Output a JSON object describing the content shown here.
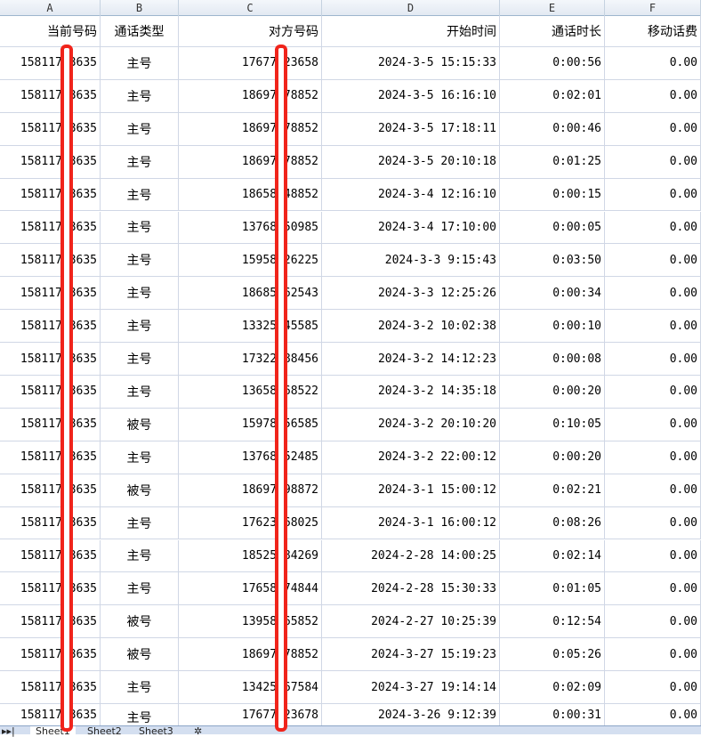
{
  "columns": [
    "A",
    "B",
    "C",
    "D",
    "E",
    "F"
  ],
  "headers": [
    "当前号码",
    "通话类型",
    "对方号码",
    "开始时间",
    "通话时长",
    "移动话费"
  ],
  "rows": [
    [
      "15811753635",
      "主号",
      "17677123658",
      "2024-3-5 15:15:33",
      "0:00:56",
      "0.00"
    ],
    [
      "15811753635",
      "主号",
      "18697378852",
      "2024-3-5 16:16:10",
      "0:02:01",
      "0.00"
    ],
    [
      "15811753635",
      "主号",
      "18697378852",
      "2024-3-5 17:18:11",
      "0:00:46",
      "0.00"
    ],
    [
      "15811753635",
      "主号",
      "18697378852",
      "2024-3-5 20:10:18",
      "0:01:25",
      "0.00"
    ],
    [
      "15811753635",
      "主号",
      "18658548852",
      "2024-3-4 12:16:10",
      "0:00:15",
      "0.00"
    ],
    [
      "15811753635",
      "主号",
      "13768250985",
      "2024-3-4 17:10:00",
      "0:00:05",
      "0.00"
    ],
    [
      "15811753635",
      "主号",
      "15958426225",
      "2024-3-3 9:15:43",
      "0:03:50",
      "0.00"
    ],
    [
      "15811753635",
      "主号",
      "18685562543",
      "2024-3-3 12:25:26",
      "0:00:34",
      "0.00"
    ],
    [
      "15811753635",
      "主号",
      "13325545585",
      "2024-3-2 10:02:38",
      "0:00:10",
      "0.00"
    ],
    [
      "15811753635",
      "主号",
      "17322388456",
      "2024-3-2 14:12:23",
      "0:00:08",
      "0.00"
    ],
    [
      "15811753635",
      "主号",
      "13658568522",
      "2024-3-2 14:35:18",
      "0:00:20",
      "0.00"
    ],
    [
      "15811753635",
      "被号",
      "15978156585",
      "2024-3-2 20:10:20",
      "0:10:05",
      "0.00"
    ],
    [
      "15811753635",
      "主号",
      "13768252485",
      "2024-3-2 22:00:12",
      "0:00:20",
      "0.00"
    ],
    [
      "15811753635",
      "被号",
      "18697398872",
      "2024-3-1 15:00:12",
      "0:02:21",
      "0.00"
    ],
    [
      "15811753635",
      "主号",
      "17623568025",
      "2024-3-1 16:00:12",
      "0:08:26",
      "0.00"
    ],
    [
      "15811753635",
      "主号",
      "18525584269",
      "2024-2-28 14:00:25",
      "0:02:14",
      "0.00"
    ],
    [
      "15811753635",
      "主号",
      "17658474844",
      "2024-2-28 15:30:33",
      "0:01:05",
      "0.00"
    ],
    [
      "15811753635",
      "被号",
      "13958265852",
      "2024-2-27 10:25:39",
      "0:12:54",
      "0.00"
    ],
    [
      "15811753635",
      "被号",
      "18697378852",
      "2024-3-27 15:19:23",
      "0:05:26",
      "0.00"
    ],
    [
      "15811753635",
      "主号",
      "13425567584",
      "2024-3-27 19:14:14",
      "0:02:09",
      "0.00"
    ],
    [
      "15811753635",
      "主号",
      "17677123678",
      "2024-3-26 9:12:39",
      "0:00:31",
      "0.00"
    ]
  ],
  "sheet_tabs": [
    "Sheet1",
    "Sheet2",
    "Sheet3"
  ],
  "active_tab": "Sheet1",
  "redaction_color": "#f0241b"
}
